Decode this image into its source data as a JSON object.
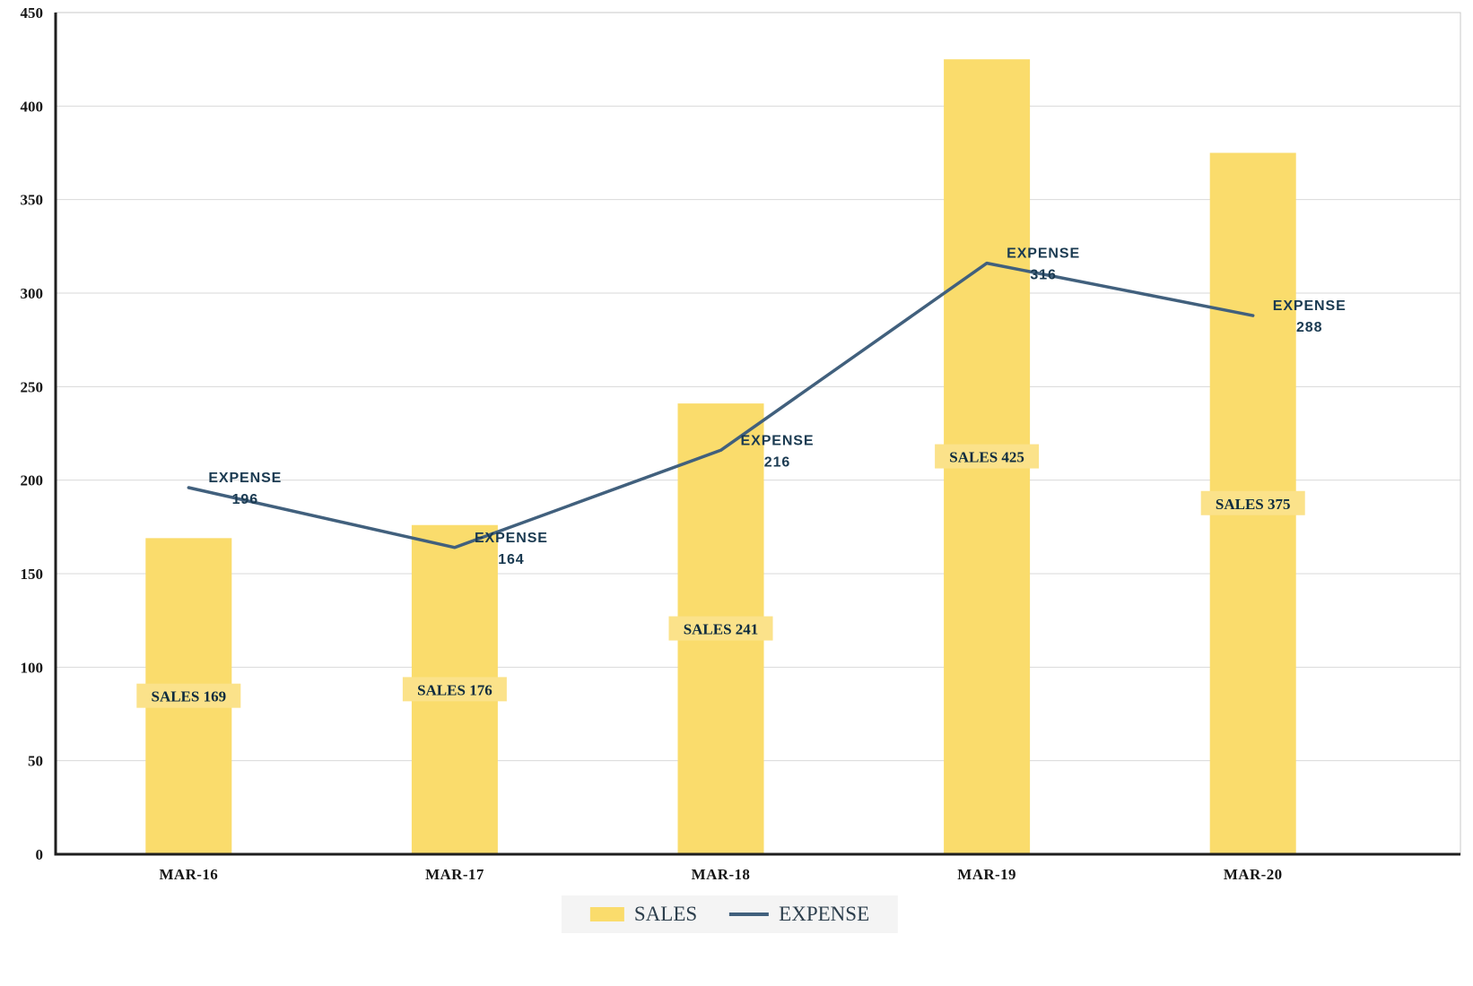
{
  "chart_data": {
    "type": "combo-bar-line",
    "title": "",
    "xlabel": "",
    "ylabel": "",
    "categories": [
      "MAR-16",
      "MAR-17",
      "MAR-18",
      "MAR-19",
      "MAR-20"
    ],
    "series": [
      {
        "name": "SALES",
        "chart": "bar",
        "color": "#FADC6C",
        "label_bg": "#FBE28A",
        "values": [
          169,
          176,
          241,
          425,
          375
        ]
      },
      {
        "name": "EXPENSE",
        "chart": "line",
        "color": "#41607D",
        "values": [
          196,
          164,
          216,
          316,
          288
        ]
      }
    ],
    "ylim": [
      0,
      450
    ],
    "ytick_interval": 50,
    "yticks": [
      0,
      50,
      100,
      150,
      200,
      250,
      300,
      350,
      400,
      450
    ],
    "grid": true,
    "legend_position": "bottom",
    "data_labels": {
      "sales_format": "SALES {value}",
      "expense_format": "EXPENSE {value}"
    }
  },
  "legend": {
    "sales_label": "SALES",
    "expense_label": "EXPENSE"
  },
  "colors": {
    "bar": "#FADC6C",
    "bar_label_bg": "#FBE28A",
    "line": "#41607D",
    "expense_label_text": "#1A3A51",
    "sales_label_text": "#0D2B3F",
    "grid": "#D9D9D9",
    "plot_border": "#C9C9C9",
    "axis": "#1F1F1F",
    "legend_bg": "#F4F4F4"
  }
}
